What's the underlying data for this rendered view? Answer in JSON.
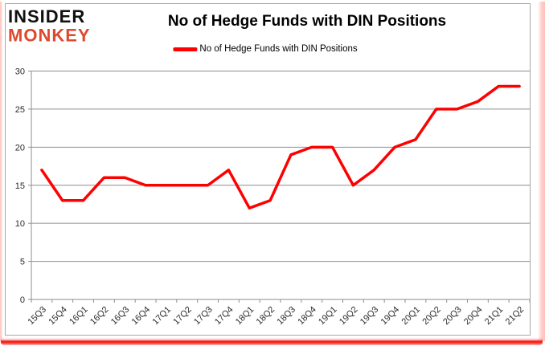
{
  "logo": {
    "line1": "INSIDER",
    "line2": "MONKEY"
  },
  "header": {
    "title": "No of Hedge Funds with DIN Positions"
  },
  "legend": {
    "label": "No of Hedge Funds with DIN Positions"
  },
  "colors": {
    "line": "#FF0000",
    "logo_red": "#DD4A2D",
    "gridline": "#8E8E8E",
    "axis_text": "#2B2B2B",
    "frame_gray": "#A8A8A8",
    "glow_red": "#EE1212"
  },
  "chart_data": {
    "type": "line",
    "title": "No of Hedge Funds with DIN Positions",
    "categories": [
      "15Q3",
      "15Q4",
      "16Q1",
      "16Q2",
      "16Q3",
      "16Q4",
      "17Q1",
      "17Q2",
      "17Q3",
      "17Q4",
      "18Q1",
      "18Q2",
      "18Q3",
      "18Q4",
      "19Q1",
      "19Q2",
      "19Q3",
      "19Q4",
      "20Q1",
      "20Q2",
      "20Q3",
      "20Q4",
      "21Q1",
      "21Q2"
    ],
    "series": [
      {
        "name": "No of Hedge Funds with DIN Positions",
        "color": "#FF0000",
        "values": [
          17,
          13,
          13,
          16,
          16,
          15,
          15,
          15,
          15,
          17,
          12,
          13,
          19,
          20,
          20,
          15,
          17,
          20,
          21,
          25,
          25,
          26,
          28,
          28
        ]
      }
    ],
    "xlabel": "",
    "ylabel": "",
    "ylim": [
      0,
      30
    ],
    "yticks": [
      0,
      5,
      10,
      15,
      20,
      25,
      30
    ],
    "grid": true,
    "legend_position": "top-center"
  }
}
